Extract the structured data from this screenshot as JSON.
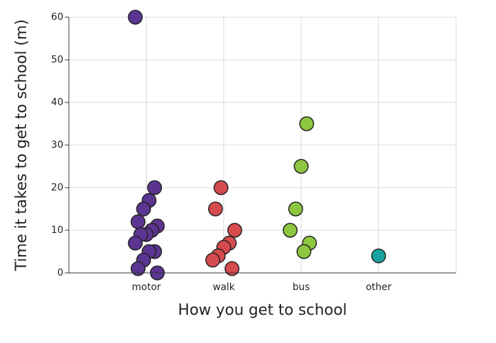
{
  "chart_data": {
    "type": "strip",
    "xlabel": "How you get to school",
    "ylabel": "Time it takes to get to school (m)",
    "categories": [
      "motor",
      "walk",
      "bus",
      "other"
    ],
    "colors": [
      "#5b3591",
      "#d64b4e",
      "#8dc63f",
      "#17a2a0"
    ],
    "values": [
      [
        60,
        20,
        17,
        15,
        12,
        11,
        10,
        9,
        9,
        7,
        5,
        5,
        3,
        1,
        0
      ],
      [
        20,
        15,
        10,
        7,
        6,
        4,
        3,
        1
      ],
      [
        35,
        25,
        15,
        10,
        7,
        5
      ],
      [
        4
      ]
    ],
    "ylim": [
      0,
      60
    ],
    "yticks": [
      0,
      10,
      20,
      30,
      40,
      50,
      60
    ],
    "grid": true
  }
}
